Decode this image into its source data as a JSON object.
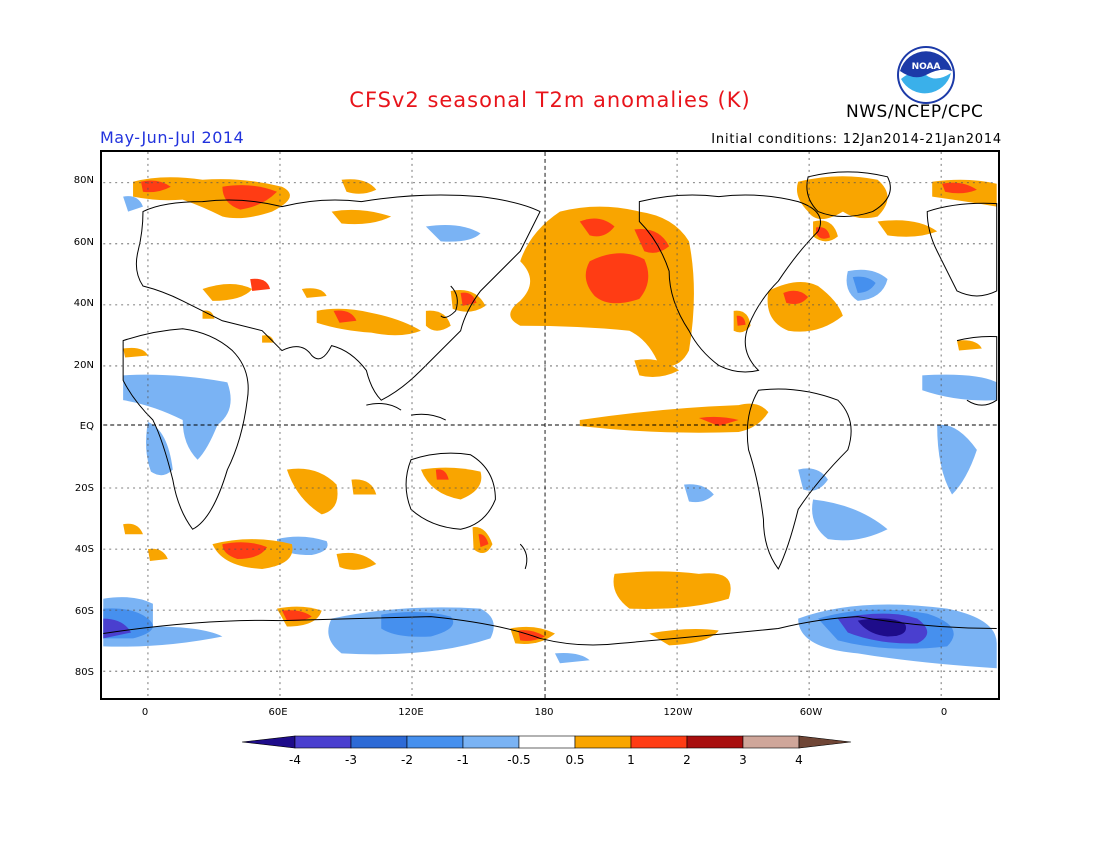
{
  "title": "CFSv2 seasonal T2m anomalies (K)",
  "agency": "NWS/NCEP/CPC",
  "logo_text": "NOAA",
  "season": "May-Jun-Jul 2014",
  "initial_conditions": "Initial conditions: 12Jan2014-21Jan2014",
  "map": {
    "lat_labels": [
      "80N",
      "60N",
      "40N",
      "20N",
      "EQ",
      "20S",
      "40S",
      "60S",
      "80S"
    ],
    "lon_labels": [
      "0",
      "60E",
      "120E",
      "180",
      "120W",
      "60W",
      "0"
    ],
    "grid": "dotted every 30 degrees, dashed equator and dateline"
  },
  "colorbar": {
    "labels": [
      "-4",
      "-3",
      "-2",
      "-1",
      "-0.5",
      "0.5",
      "1",
      "2",
      "3",
      "4"
    ],
    "colors": [
      "#1e0c8a",
      "#4a3fcf",
      "#2d6ad6",
      "#4690ee",
      "#7ab3f4",
      "#ffffff",
      "#f9a500",
      "#ff3c14",
      "#a80e0e",
      "#cfa69a",
      "#6f4535"
    ]
  },
  "anomaly_regions": [
    {
      "name": "N Pacific warm",
      "lon": -150,
      "lat": 44,
      "level": 1
    },
    {
      "name": "Alaska warm",
      "lon": -155,
      "lat": 62,
      "level": 1
    },
    {
      "name": "Eq Pacific warm",
      "lon": -120,
      "lat": 0,
      "level": 0.5
    },
    {
      "name": "Greenland warm",
      "lon": -40,
      "lat": 72,
      "level": 0.5
    },
    {
      "name": "NW Atlantic warm",
      "lon": -58,
      "lat": 36,
      "level": 0.5
    },
    {
      "name": "Siberia warm",
      "lon": 60,
      "lat": 74,
      "level": 1
    },
    {
      "name": "S Pacific warm",
      "lon": -150,
      "lat": -55,
      "level": 0.5
    },
    {
      "name": "S Indian Ocean warm",
      "lon": 45,
      "lat": -42,
      "level": 1
    },
    {
      "name": "Antarctic cold",
      "lon": -35,
      "lat": -68,
      "level": -3
    },
    {
      "name": "Antarctic cold 2",
      "lon": 100,
      "lat": -68,
      "level": -1
    },
    {
      "name": "Africa cold",
      "lon": 20,
      "lat": 15,
      "level": -0.5
    },
    {
      "name": "N Atlantic cold",
      "lon": -40,
      "lat": 43,
      "level": -1
    }
  ]
}
